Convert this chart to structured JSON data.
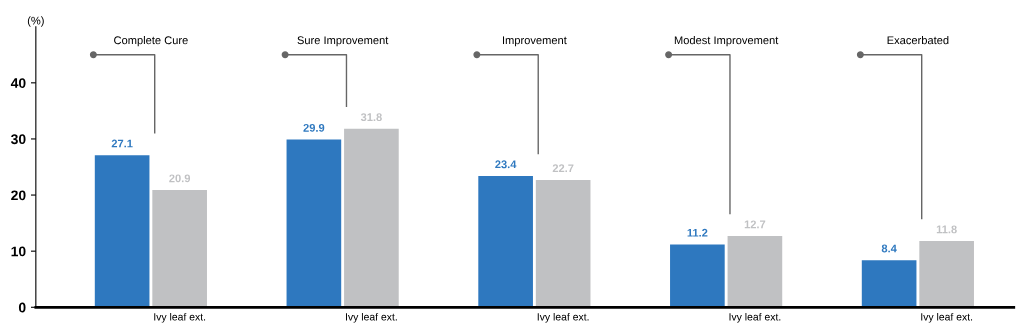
{
  "chart_data": {
    "type": "bar",
    "ylabel": "(%)",
    "categories": [
      "Complete Cure",
      "Sure Improvement",
      "Improvement",
      "Modest Improvement",
      "Exacerbated"
    ],
    "series": [
      {
        "color": "#2e78bf",
        "values": [
          27.1,
          29.9,
          23.4,
          11.2,
          8.4
        ]
      },
      {
        "name": "Ivy leaf ext.",
        "color": "#c0c1c3",
        "values": [
          20.9,
          31.8,
          22.7,
          12.7,
          11.8
        ]
      }
    ],
    "ylim": [
      0,
      50
    ],
    "yticks": [
      0,
      10,
      20,
      30,
      40
    ],
    "data_labels": true,
    "grid": false,
    "legend": false
  }
}
